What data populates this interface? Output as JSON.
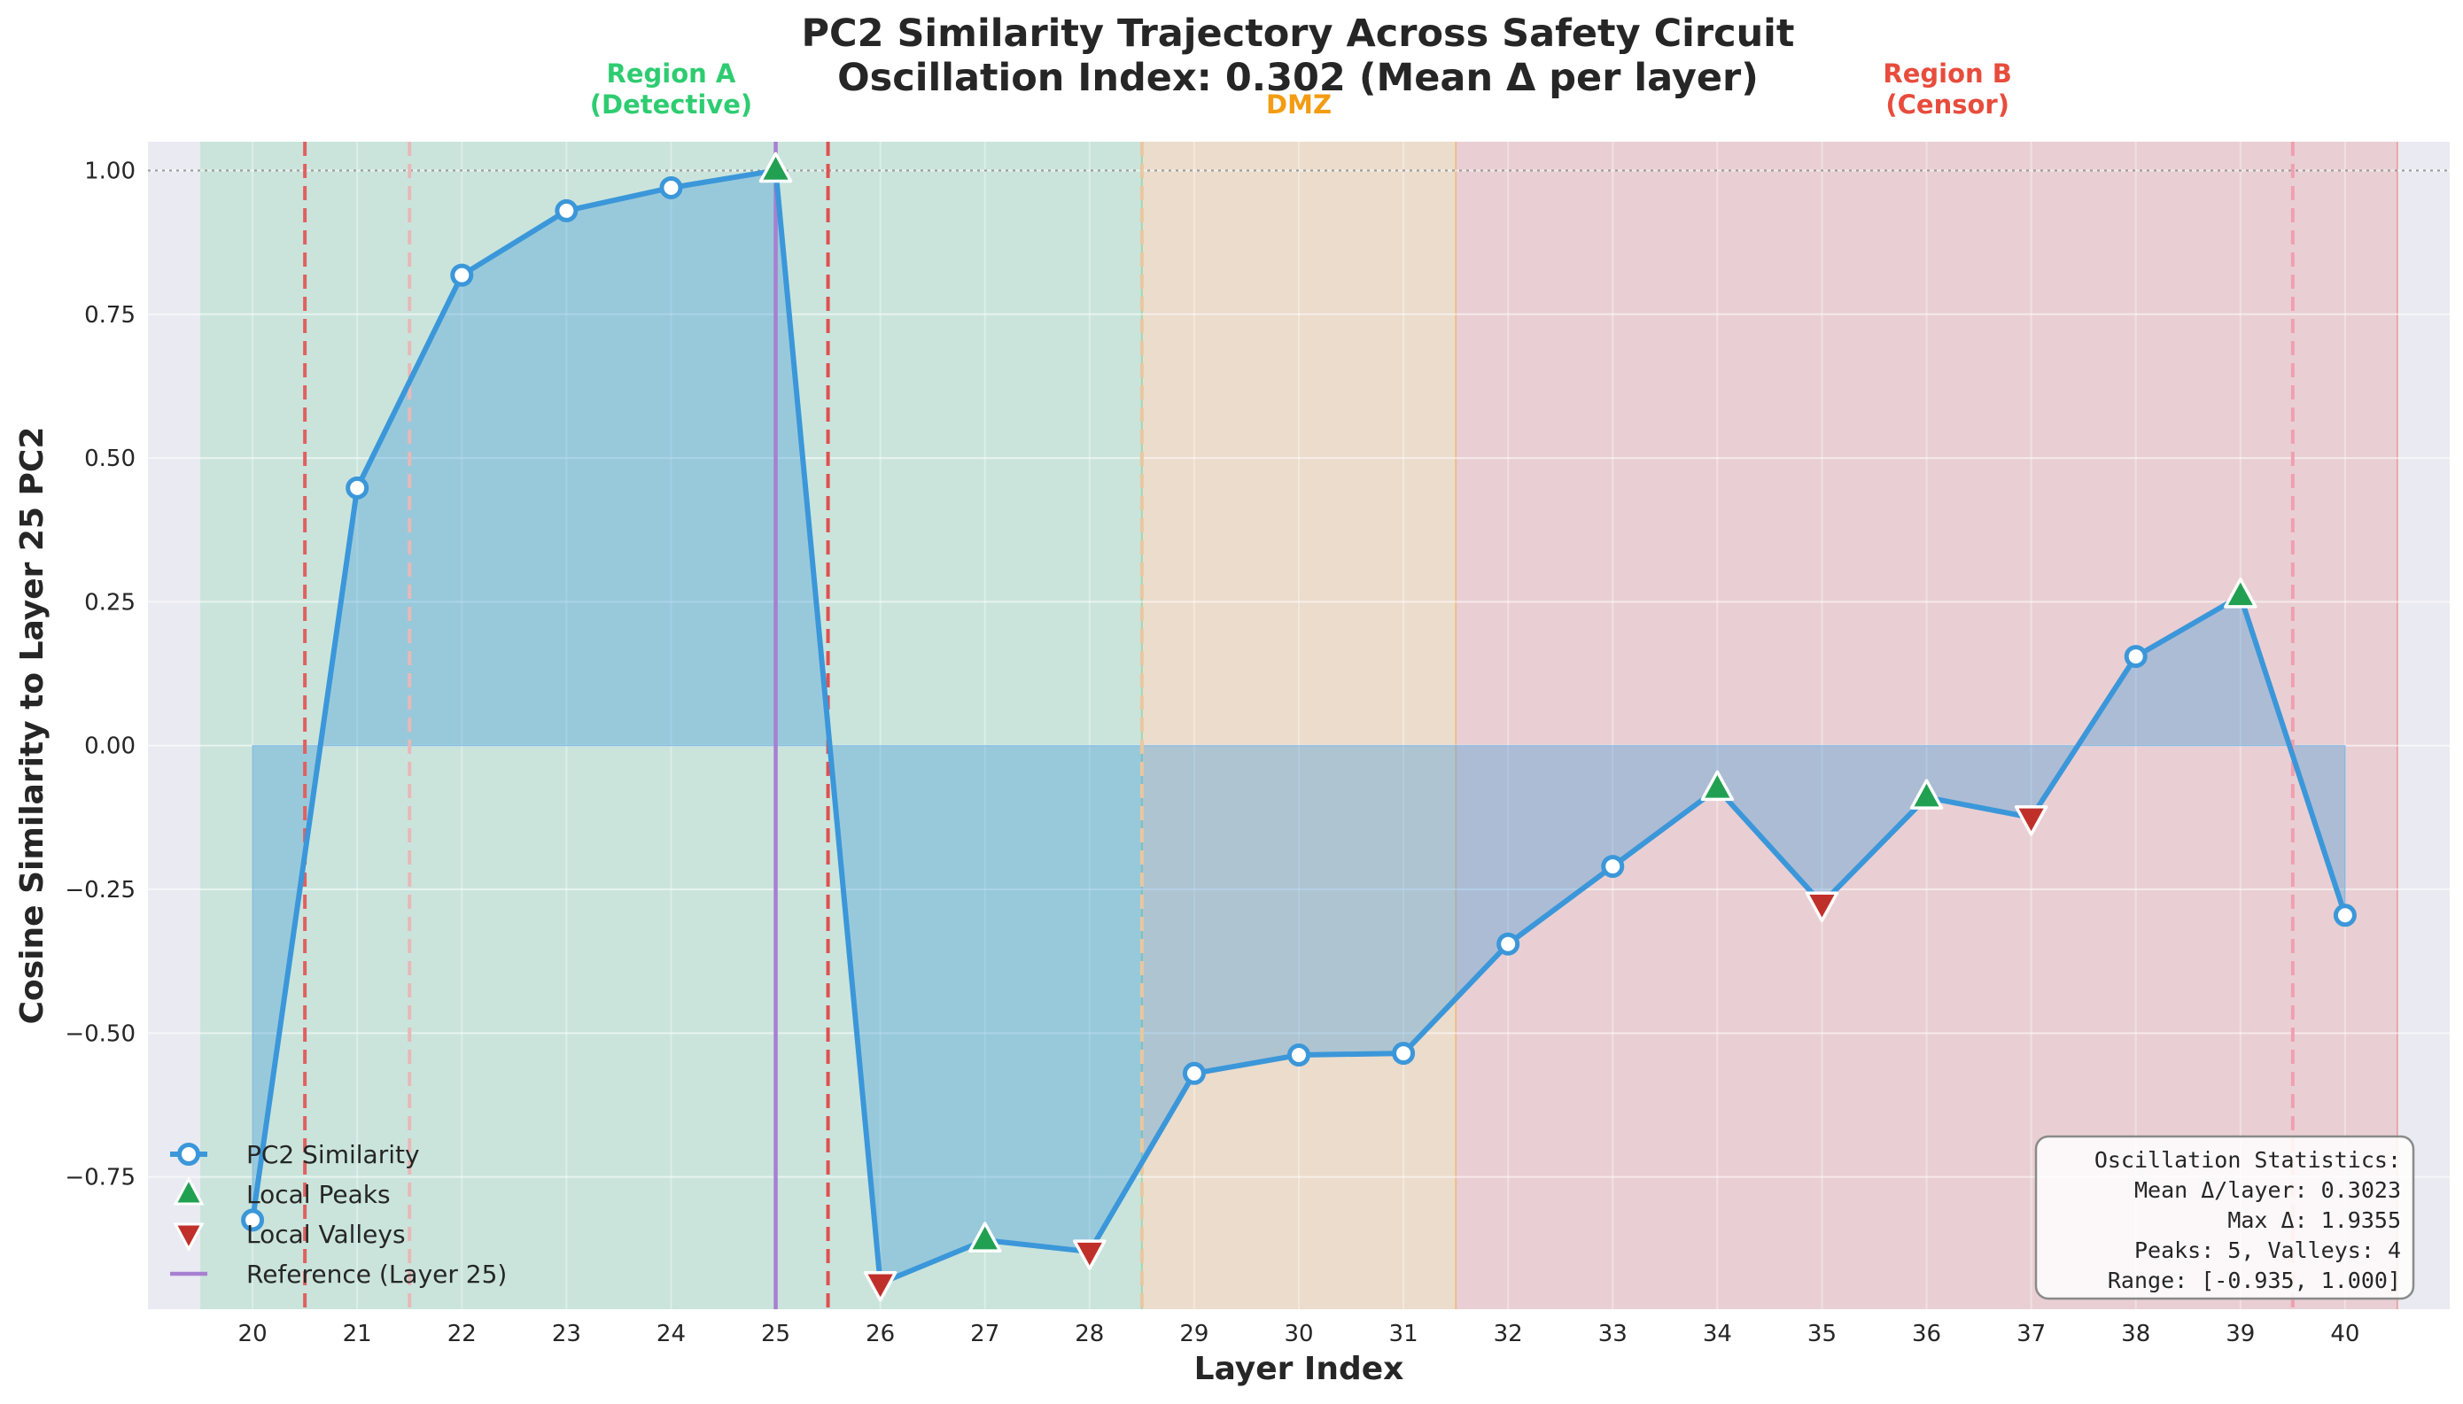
{
  "chart_data": {
    "type": "line",
    "title": "PC2 Similarity Trajectory Across Safety Circuit",
    "subtitle": "Oscillation Index: 0.302 (Mean Δ per layer)",
    "xlabel": "Layer Index",
    "ylabel": "Cosine Similarity to Layer 25 PC2",
    "x": [
      20,
      21,
      22,
      23,
      24,
      25,
      26,
      27,
      28,
      29,
      30,
      31,
      32,
      33,
      34,
      35,
      36,
      37,
      38,
      39,
      40
    ],
    "xlim": [
      19,
      41
    ],
    "ylim": [
      -0.98,
      1.05
    ],
    "yticks": [
      -0.75,
      -0.5,
      -0.25,
      0.0,
      0.25,
      0.5,
      0.75,
      1.0
    ],
    "ytick_labels": [
      "−0.75",
      "−0.50",
      "−0.25",
      "0.00",
      "0.25",
      "0.50",
      "0.75",
      "1.00"
    ],
    "grid": true,
    "series": [
      {
        "name": "PC2 Similarity",
        "color": "#3b97d9",
        "values": [
          -0.825,
          0.448,
          0.818,
          0.93,
          0.97,
          1.0,
          -0.935,
          -0.86,
          -0.88,
          -0.57,
          -0.538,
          -0.535,
          -0.345,
          -0.21,
          -0.075,
          -0.275,
          -0.09,
          -0.125,
          0.155,
          0.26,
          -0.295
        ]
      }
    ],
    "peaks": {
      "name": "Local Peaks",
      "color": "#22a052",
      "x": [
        25,
        27,
        34,
        36,
        39
      ]
    },
    "valleys": {
      "name": "Local Valleys",
      "color": "#c0302b",
      "x": [
        26,
        28,
        35,
        37
      ]
    },
    "reference": {
      "name": "Reference (Layer 25)",
      "x": 25,
      "color": "#a77fd0"
    },
    "regions": [
      {
        "name": "Region A\n(Detective)",
        "x0": 19.5,
        "x1": 28.5,
        "color": "#2ecc71",
        "label_x": 24
      },
      {
        "name": "DMZ",
        "x0": 28.5,
        "x1": 31.5,
        "color": "#f39c12",
        "label_x": 30
      },
      {
        "name": "Region B\n(Censor)",
        "x0": 31.5,
        "x1": 40.5,
        "color": "#e74c3c",
        "label_x": 36.2
      }
    ],
    "boundary_lines": [
      {
        "x": 20.5,
        "color": "#e06060"
      },
      {
        "x": 21.5,
        "color": "#e8b8b8"
      },
      {
        "x": 25.5,
        "color": "#e05050"
      },
      {
        "x": 28.5,
        "color": "#e8c8a0"
      },
      {
        "x": 39.5,
        "color": "#f0a0b0"
      }
    ],
    "hline": 1.0,
    "legend_position": "lower-left",
    "stats_box": {
      "lines": [
        "Oscillation Statistics:",
        "Mean Δ/layer: 0.3023",
        "Max Δ: 1.9355",
        "Peaks: 5, Valleys: 4",
        "Range: [-0.935, 1.000]"
      ],
      "position": "lower-right"
    }
  }
}
